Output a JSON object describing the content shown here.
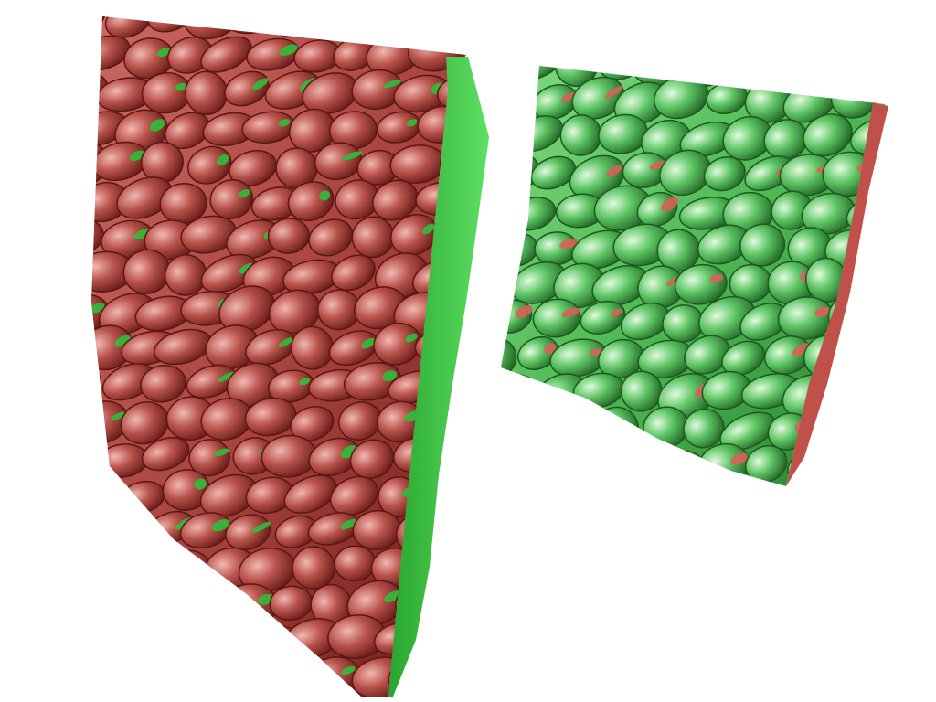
{
  "scene": {
    "background": "#ffffff",
    "objects": [
      {
        "name": "red-textured-block",
        "surface_color": "#b04a44",
        "highlight_color": "#e9a8a2",
        "shadow_color": "#5e1614",
        "secondary_color": "#2fbf3a"
      },
      {
        "name": "green-textured-block",
        "surface_color": "#48b84f",
        "highlight_color": "#c8f2c6",
        "shadow_color": "#1c5a20",
        "secondary_color": "#d8605a"
      }
    ]
  }
}
